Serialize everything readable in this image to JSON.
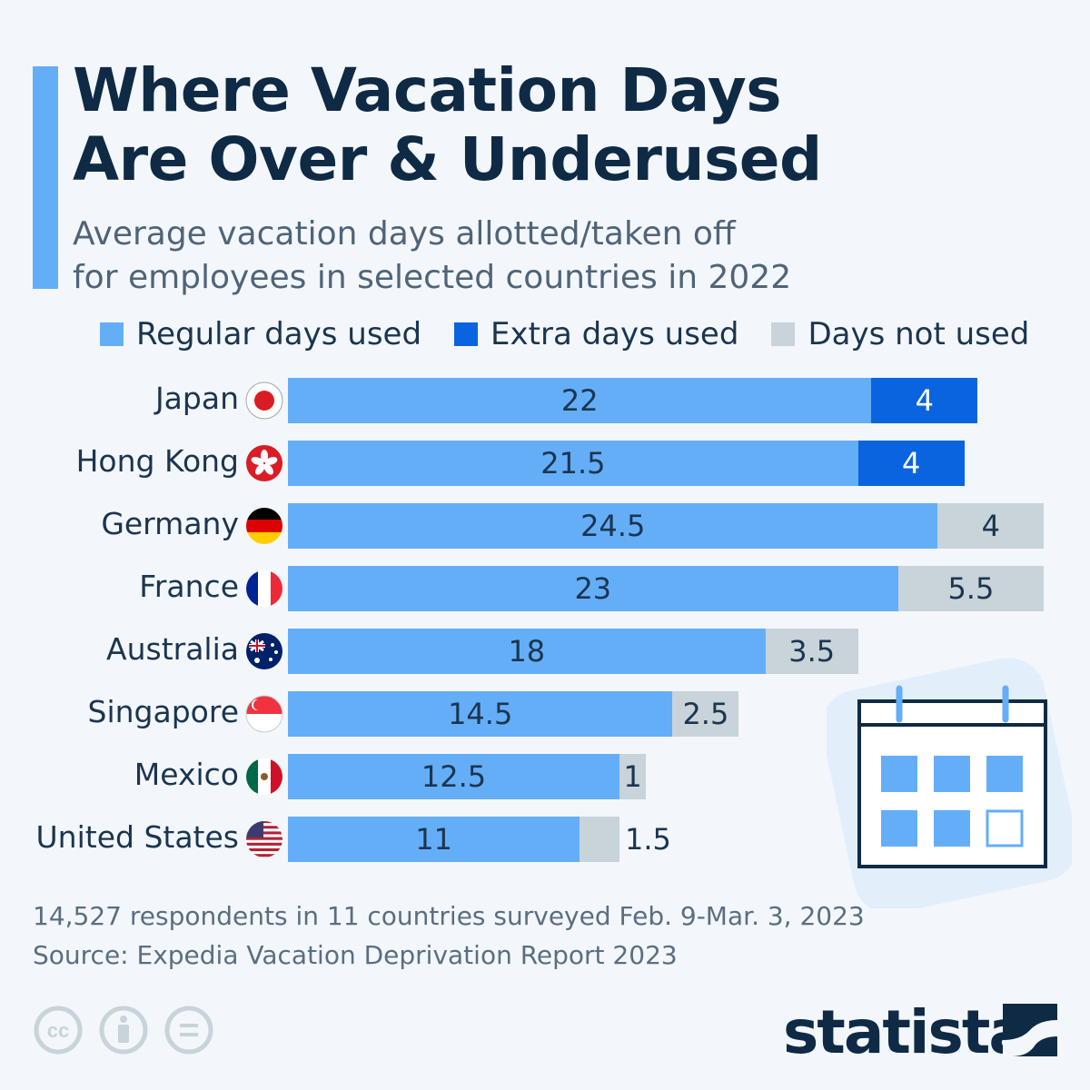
{
  "header": {
    "title_line1": "Where Vacation Days",
    "title_line2": "Are Over & Underused",
    "subtitle_line1": "Average vacation days allotted/taken off",
    "subtitle_line2": "for employees in selected countries in 2022"
  },
  "colors": {
    "regular": "#64AEF8",
    "extra": "#0A64E0",
    "not_used": "#C8D3DA",
    "title": "#0F2A45",
    "background": "#F3F7FB"
  },
  "chart_data": {
    "type": "bar",
    "orientation": "horizontal",
    "stacked": true,
    "categories": [
      "Japan",
      "Hong Kong",
      "Germany",
      "France",
      "Australia",
      "Singapore",
      "Mexico",
      "United States"
    ],
    "flags": [
      "japan-flag",
      "hong-kong-flag",
      "germany-flag",
      "france-flag",
      "australia-flag",
      "singapore-flag",
      "mexico-flag",
      "united-states-flag"
    ],
    "series": [
      {
        "name": "Regular days used",
        "color": "#64AEF8",
        "values": [
          22,
          21.5,
          24.5,
          23,
          18,
          14.5,
          12.5,
          11
        ]
      },
      {
        "name": "Extra days used",
        "color": "#0A64E0",
        "values": [
          4,
          4,
          0,
          0,
          0,
          0,
          0,
          0
        ]
      },
      {
        "name": "Days not used",
        "color": "#C8D3DA",
        "values": [
          0,
          0,
          4,
          5.5,
          3.5,
          2.5,
          1,
          1.5
        ]
      }
    ],
    "legend_position": "top",
    "grid": false
  },
  "footer": {
    "note": "14,527 respondents in 11 countries surveyed Feb. 9-Mar. 3, 2023",
    "source": "Source: Expedia Vacation Deprivation Report 2023",
    "logo": "statista"
  }
}
